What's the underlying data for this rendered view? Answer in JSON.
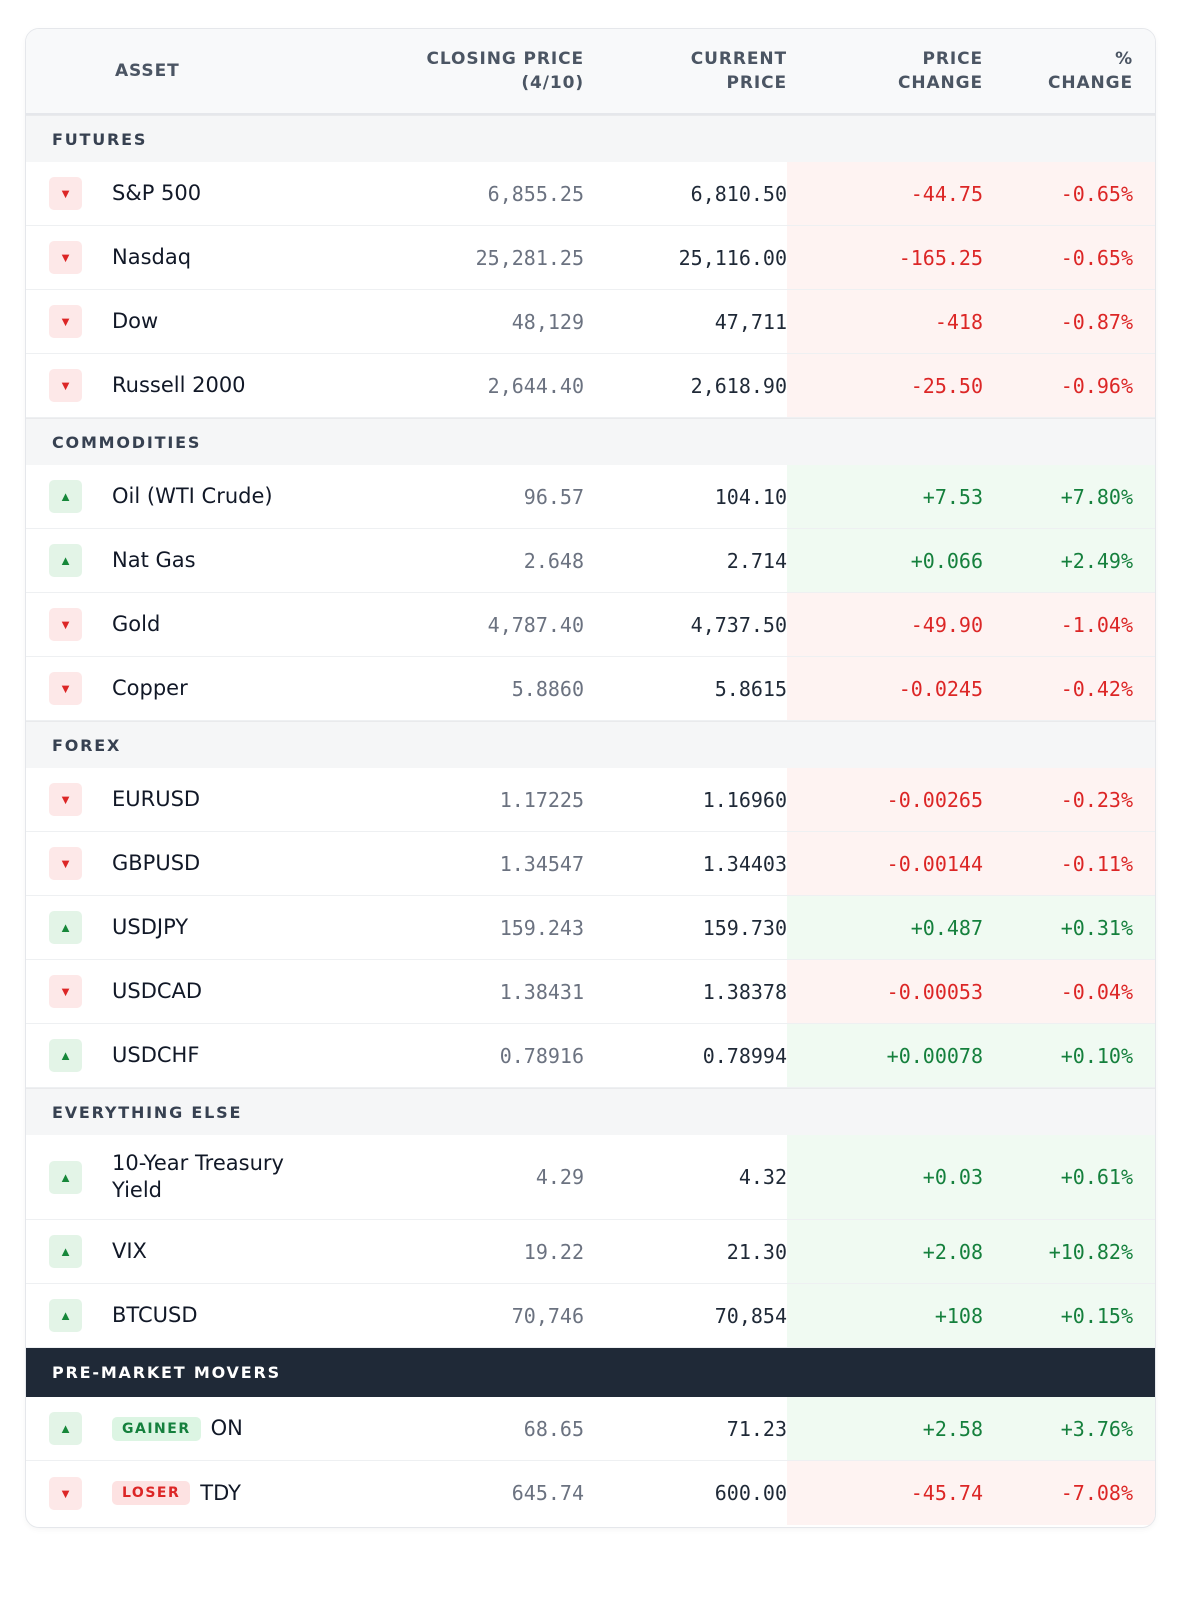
{
  "header": {
    "asset": "ASSET",
    "closing_line1": "CLOSING PRICE",
    "closing_line2": "(4/10)",
    "current_line1": "CURRENT",
    "current_line2": "PRICE",
    "price_change_line1": "PRICE",
    "price_change_line2": "CHANGE",
    "pct_change_line1": "%",
    "pct_change_line2": "CHANGE"
  },
  "sections": [
    {
      "title": "FUTURES",
      "rows": [
        {
          "dir": "down",
          "name": "S&P 500",
          "closing": "6,855.25",
          "current": "6,810.50",
          "change": "-44.75",
          "pct": "-0.65%"
        },
        {
          "dir": "down",
          "name": "Nasdaq",
          "closing": "25,281.25",
          "current": "25,116.00",
          "change": "-165.25",
          "pct": "-0.65%"
        },
        {
          "dir": "down",
          "name": "Dow",
          "closing": "48,129",
          "current": "47,711",
          "change": "-418",
          "pct": "-0.87%"
        },
        {
          "dir": "down",
          "name": "Russell 2000",
          "closing": "2,644.40",
          "current": "2,618.90",
          "change": "-25.50",
          "pct": "-0.96%"
        }
      ]
    },
    {
      "title": "COMMODITIES",
      "rows": [
        {
          "dir": "up",
          "name": "Oil (WTI Crude)",
          "closing": "96.57",
          "current": "104.10",
          "change": "+7.53",
          "pct": "+7.80%"
        },
        {
          "dir": "up",
          "name": "Nat Gas",
          "closing": "2.648",
          "current": "2.714",
          "change": "+0.066",
          "pct": "+2.49%"
        },
        {
          "dir": "down",
          "name": "Gold",
          "closing": "4,787.40",
          "current": "4,737.50",
          "change": "-49.90",
          "pct": "-1.04%"
        },
        {
          "dir": "down",
          "name": "Copper",
          "closing": "5.8860",
          "current": "5.8615",
          "change": "-0.0245",
          "pct": "-0.42%"
        }
      ]
    },
    {
      "title": "FOREX",
      "rows": [
        {
          "dir": "down",
          "name": "EURUSD",
          "closing": "1.17225",
          "current": "1.16960",
          "change": "-0.00265",
          "pct": "-0.23%"
        },
        {
          "dir": "down",
          "name": "GBPUSD",
          "closing": "1.34547",
          "current": "1.34403",
          "change": "-0.00144",
          "pct": "-0.11%"
        },
        {
          "dir": "up",
          "name": "USDJPY",
          "closing": "159.243",
          "current": "159.730",
          "change": "+0.487",
          "pct": "+0.31%"
        },
        {
          "dir": "down",
          "name": "USDCAD",
          "closing": "1.38431",
          "current": "1.38378",
          "change": "-0.00053",
          "pct": "-0.04%"
        },
        {
          "dir": "up",
          "name": "USDCHF",
          "closing": "0.78916",
          "current": "0.78994",
          "change": "+0.00078",
          "pct": "+0.10%"
        }
      ]
    },
    {
      "title": "EVERYTHING ELSE",
      "rows": [
        {
          "dir": "up",
          "name": "10-Year Treasury Yield",
          "closing": "4.29",
          "current": "4.32",
          "change": "+0.03",
          "pct": "+0.61%"
        },
        {
          "dir": "up",
          "name": "VIX",
          "closing": "19.22",
          "current": "21.30",
          "change": "+2.08",
          "pct": "+10.82%"
        },
        {
          "dir": "up",
          "name": "BTCUSD",
          "closing": "70,746",
          "current": "70,854",
          "change": "+108",
          "pct": "+0.15%"
        }
      ]
    },
    {
      "title": "PRE-MARKET MOVERS",
      "dark": true,
      "rows": [
        {
          "dir": "up",
          "badge": "GAINER",
          "name": "ON",
          "closing": "68.65",
          "current": "71.23",
          "change": "+2.58",
          "pct": "+3.76%"
        },
        {
          "dir": "down",
          "badge": "LOSER",
          "name": "TDY",
          "closing": "645.74",
          "current": "600.00",
          "change": "-45.74",
          "pct": "-7.08%"
        }
      ]
    }
  ],
  "icons": {
    "up": "▲",
    "down": "▼"
  },
  "colors": {
    "negative": "#dc2626",
    "positive": "#15803d",
    "negative_bg": "#fef3f2",
    "positive_bg": "#f0faf2",
    "dark_section_bg": "#1f2937"
  }
}
